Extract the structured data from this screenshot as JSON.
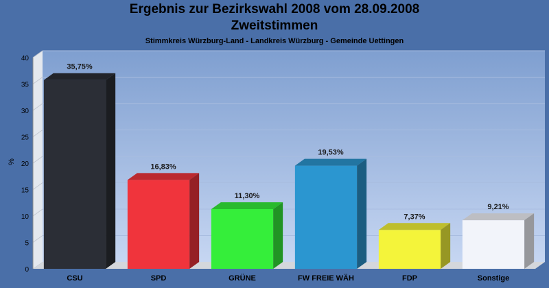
{
  "chart_data": {
    "type": "bar",
    "title": "Ergebnis zur Bezirkswahl 2008 vom 28.09.2008",
    "subtitle": "Zweitstimmen",
    "caption": "Stimmkreis Würzburg-Land - Landkreis Würzburg - Gemeinde Uettingen",
    "ylabel": "%",
    "ylim": [
      0,
      40
    ],
    "yticks": [
      "0",
      "5",
      "10",
      "15",
      "20",
      "25",
      "30",
      "35",
      "40"
    ],
    "categories": [
      "CSU",
      "SPD",
      "GRÜNE",
      "FW FREIE WÄH",
      "FDP",
      "Sonstige"
    ],
    "values": [
      35.75,
      16.83,
      11.3,
      19.53,
      7.37,
      9.21
    ],
    "value_labels": [
      "35,75%",
      "16,83%",
      "11,30%",
      "19,53%",
      "7,37%",
      "9,21%"
    ],
    "colors": [
      "#2b2e36",
      "#f0343c",
      "#35ee3a",
      "#2b96d0",
      "#f4f43a",
      "#f2f4fa"
    ]
  }
}
